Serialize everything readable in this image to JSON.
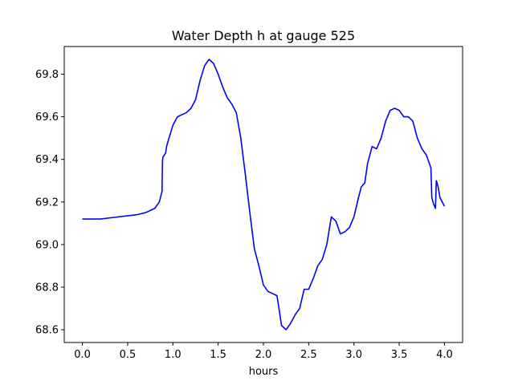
{
  "chart_data": {
    "type": "line",
    "title": "Water Depth h at gauge 525",
    "xlabel": "hours",
    "ylabel": "",
    "xlim": [
      -0.2,
      4.2
    ],
    "ylim": [
      68.54,
      69.93
    ],
    "xticks": [
      0.0,
      0.5,
      1.0,
      1.5,
      2.0,
      2.5,
      3.0,
      3.5,
      4.0
    ],
    "xtick_labels": [
      "0.0",
      "0.5",
      "1.0",
      "1.5",
      "2.0",
      "2.5",
      "3.0",
      "3.5",
      "4.0"
    ],
    "yticks": [
      68.6,
      68.8,
      69.0,
      69.2,
      69.4,
      69.6,
      69.8
    ],
    "ytick_labels": [
      "68.6",
      "68.8",
      "69.0",
      "69.2",
      "69.4",
      "69.6",
      "69.8"
    ],
    "grid": false,
    "line_color": "#0000ff",
    "series": [
      {
        "x": [
          0.0,
          0.2,
          0.4,
          0.6,
          0.7,
          0.8,
          0.85,
          0.88,
          0.885,
          0.89,
          0.92,
          0.93,
          0.95,
          1.0,
          1.05,
          1.1,
          1.15,
          1.2,
          1.25,
          1.3,
          1.35,
          1.4,
          1.45,
          1.5,
          1.55,
          1.6,
          1.65,
          1.7,
          1.75,
          1.8,
          1.85,
          1.9,
          1.95,
          2.0,
          2.05,
          2.1,
          2.15,
          2.2,
          2.25,
          2.3,
          2.35,
          2.4,
          2.45,
          2.5,
          2.55,
          2.6,
          2.65,
          2.7,
          2.75,
          2.8,
          2.85,
          2.9,
          2.95,
          3.0,
          3.05,
          3.08,
          3.1,
          3.12,
          3.15,
          3.2,
          3.25,
          3.3,
          3.35,
          3.4,
          3.45,
          3.5,
          3.55,
          3.6,
          3.65,
          3.7,
          3.75,
          3.8,
          3.85,
          3.86,
          3.88,
          3.9,
          3.91,
          3.93,
          3.95,
          4.0
        ],
        "y": [
          69.12,
          69.12,
          69.13,
          69.14,
          69.15,
          69.17,
          69.2,
          69.25,
          69.39,
          69.41,
          69.43,
          69.46,
          69.49,
          69.56,
          69.6,
          69.61,
          69.62,
          69.64,
          69.68,
          69.77,
          69.84,
          69.87,
          69.85,
          69.8,
          69.74,
          69.69,
          69.66,
          69.62,
          69.5,
          69.33,
          69.15,
          68.98,
          68.9,
          68.81,
          68.78,
          68.77,
          68.76,
          68.62,
          68.6,
          68.63,
          68.67,
          68.7,
          68.79,
          68.79,
          68.84,
          68.9,
          68.93,
          69.0,
          69.13,
          69.11,
          69.05,
          69.06,
          69.08,
          69.13,
          69.22,
          69.27,
          69.28,
          69.29,
          69.38,
          69.46,
          69.45,
          69.5,
          69.58,
          69.63,
          69.64,
          69.63,
          69.6,
          69.6,
          69.58,
          69.5,
          69.45,
          69.42,
          69.36,
          69.22,
          69.19,
          69.17,
          69.3,
          69.27,
          69.22,
          69.18
        ]
      }
    ]
  }
}
